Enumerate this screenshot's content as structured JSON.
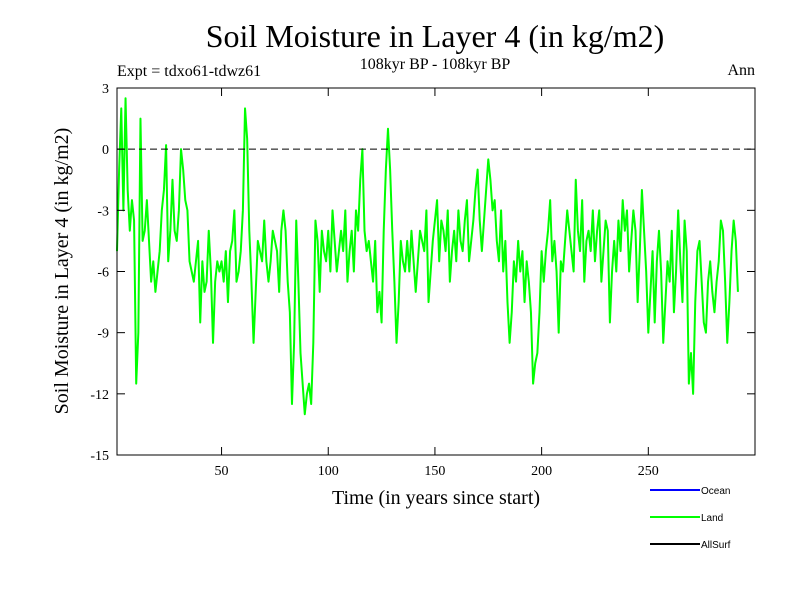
{
  "chart_data": {
    "type": "line",
    "title": "Soil Moisture in Layer 4 (in kg/m2)",
    "subtitle": "108kyr BP - 108kyr BP",
    "experiment_label": "Expt = tdxo61-tdwz61",
    "period_label": "Ann",
    "xlabel": "Time (in years since start)",
    "ylabel": "Soil Moisture in Layer 4 (in kg/m2)",
    "xlim": [
      1,
      300
    ],
    "ylim": [
      -15,
      3
    ],
    "x_ticks": [
      50,
      100,
      150,
      200,
      250
    ],
    "x_tick_labels": [
      "50",
      "100",
      "150",
      "200",
      "250"
    ],
    "y_ticks": [
      3,
      0,
      -3,
      -6,
      -9,
      -12,
      -15
    ],
    "y_tick_labels": [
      "3",
      "0",
      "-3",
      "-6",
      "-9",
      "-12",
      "-15"
    ],
    "reference_line": 0,
    "legend": [
      {
        "name": "Ocean",
        "color": "#0000ff"
      },
      {
        "name": "Land",
        "color": "#00ff00"
      },
      {
        "name": "AllSurf",
        "color": "#000000"
      }
    ],
    "series": [
      {
        "name": "Land",
        "color": "#00ff00",
        "x_start": 1,
        "x_step": 1,
        "values": [
          -5,
          -1,
          2,
          -3,
          2.5,
          -2,
          -4,
          -2.5,
          -3.5,
          -11.5,
          -9,
          1.5,
          -4.5,
          -4,
          -2.5,
          -4.5,
          -6.5,
          -5.5,
          -7,
          -6,
          -5,
          -3,
          -2,
          0.2,
          -5.5,
          -4,
          -1.5,
          -4,
          -4.5,
          -3,
          0,
          -1,
          -2.5,
          -3,
          -5.5,
          -6,
          -6.5,
          -5.5,
          -4.5,
          -8.5,
          -5.5,
          -7,
          -6.5,
          -4,
          -6,
          -9.5,
          -6.5,
          -5.5,
          -6,
          -5.5,
          -6.5,
          -5,
          -7.5,
          -5,
          -4.5,
          -3,
          -6.5,
          -6,
          -5,
          -3,
          2,
          0.5,
          -4,
          -6.5,
          -9.5,
          -7,
          -4.5,
          -5,
          -5.5,
          -3.5,
          -5.5,
          -6.5,
          -5.5,
          -4,
          -4.5,
          -5,
          -7,
          -4,
          -3,
          -4,
          -6.5,
          -8,
          -12.5,
          -9.5,
          -3.5,
          -6.5,
          -10,
          -11.5,
          -13,
          -12,
          -11.5,
          -12.5,
          -9.5,
          -3.5,
          -4.5,
          -7,
          -4,
          -5,
          -5.5,
          -4,
          -6,
          -3,
          -4.5,
          -6,
          -5,
          -4,
          -5,
          -3,
          -6.5,
          -5,
          -4,
          -6,
          -3,
          -4,
          -1.5,
          0,
          -4,
          -5,
          -4.5,
          -5.5,
          -6.5,
          -4.5,
          -8,
          -7,
          -8.5,
          -4,
          -1,
          1,
          -1,
          -4,
          -6.5,
          -9.5,
          -7.5,
          -4.5,
          -5.5,
          -6,
          -4.5,
          -6,
          -4,
          -5.5,
          -7,
          -5.5,
          -4,
          -4.5,
          -5,
          -3,
          -7.5,
          -6,
          -4.5,
          -3.5,
          -2.5,
          -5.5,
          -3.5,
          -4,
          -5,
          -3,
          -6.5,
          -5,
          -4,
          -5.5,
          -3,
          -4.5,
          -5,
          -3.5,
          -2.5,
          -5.5,
          -4.5,
          -3.5,
          -2,
          -1,
          -3.5,
          -5,
          -3.5,
          -2,
          -0.5,
          -1.5,
          -3,
          -2.5,
          -4.5,
          -5.5,
          -3,
          -6,
          -4.5,
          -7.5,
          -9.5,
          -8,
          -5.5,
          -6.5,
          -4.5,
          -6,
          -5,
          -7.5,
          -5.5,
          -6.5,
          -8,
          -11.5,
          -10.5,
          -10,
          -8,
          -5,
          -6.5,
          -5,
          -4,
          -2.5,
          -5.5,
          -4.5,
          -6,
          -9,
          -5.5,
          -6,
          -4.5,
          -3,
          -4,
          -5,
          -6,
          -1.5,
          -4,
          -5,
          -2.5,
          -6.5,
          -4.5,
          -4,
          -5,
          -3,
          -5.5,
          -4,
          -3,
          -6.5,
          -5,
          -3.5,
          -4,
          -8.5,
          -6,
          -4.5,
          -6,
          -3.5,
          -5,
          -2.5,
          -4,
          -3,
          -6,
          -4.5,
          -3,
          -4,
          -7.5,
          -5,
          -2,
          -4,
          -6,
          -9,
          -7,
          -5,
          -8.5,
          -5.5,
          -4,
          -6,
          -9.5,
          -7.5,
          -5.5,
          -6.5,
          -4,
          -8,
          -6,
          -3,
          -5.5,
          -7.5,
          -3.5,
          -5,
          -11.5,
          -10,
          -12,
          -7.5,
          -5,
          -4.5,
          -6.5,
          -8.5,
          -9,
          -6.5,
          -5.5,
          -7,
          -8,
          -6.5,
          -5.5,
          -3.5,
          -4,
          -6.5,
          -9.5,
          -7.5,
          -5,
          -3.5,
          -4.5,
          -7
        ]
      }
    ]
  }
}
